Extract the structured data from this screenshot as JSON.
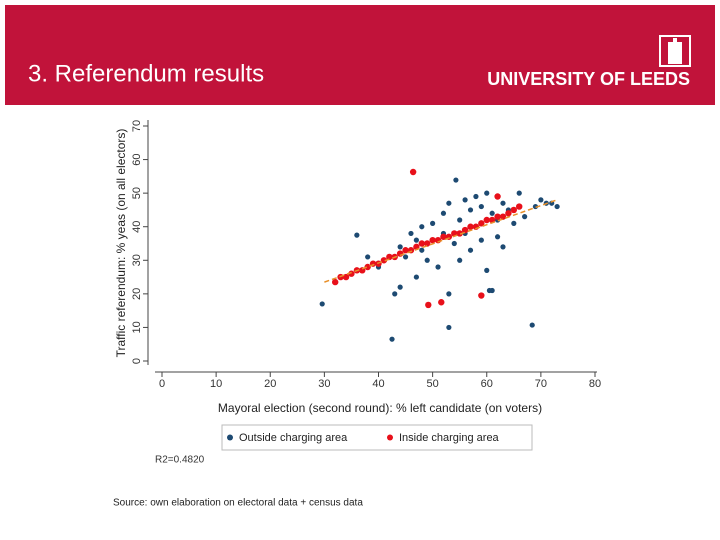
{
  "header": {
    "title": "3. Referendum results",
    "logo": "UNIVERSITY OF LEEDS"
  },
  "chart_data": {
    "type": "scatter",
    "x_label": "Mayoral election (second round): % left candidate (on voters)",
    "y_label": "Traffic referendum: % yeas (on all electors)",
    "annotation": "R2=0.4820",
    "xlim": [
      0,
      80
    ],
    "xticks": [
      0,
      10,
      20,
      30,
      40,
      50,
      60,
      70,
      80
    ],
    "ylim": [
      0,
      70
    ],
    "yticks": [
      0,
      10,
      20,
      30,
      40,
      50,
      60,
      70
    ],
    "series": [
      {
        "name": "Outside charging area",
        "color": "#1d4a72",
        "x": [
          29.6,
          36,
          38,
          40,
          42.5,
          43,
          44,
          45,
          46,
          47,
          48,
          48,
          49,
          50,
          50,
          51,
          52,
          52,
          53,
          53,
          54,
          54.3,
          55,
          55,
          56,
          56,
          57,
          57,
          58,
          58,
          59,
          59,
          60,
          60,
          61,
          61,
          62,
          62,
          63,
          63,
          64,
          65,
          66,
          67,
          68.4,
          69,
          70,
          71,
          72,
          73,
          53,
          60.5,
          47,
          44
        ],
        "values": [
          17,
          37.5,
          31,
          28,
          6.5,
          20,
          34,
          31,
          38,
          36,
          33,
          40,
          30,
          41,
          36,
          28,
          44,
          38,
          10,
          47,
          35,
          53.9,
          42,
          30,
          48,
          38,
          45,
          33,
          49,
          40,
          46,
          36,
          50,
          27,
          21,
          44,
          42,
          37,
          47,
          34,
          45,
          41,
          50,
          43,
          10.7,
          46,
          48,
          47,
          47,
          46,
          20,
          21,
          25,
          22
        ]
      },
      {
        "name": "Inside charging area",
        "color": "#e8101a",
        "x": [
          32,
          33,
          34,
          35,
          36,
          37,
          38,
          39,
          40,
          41,
          42,
          43,
          44,
          45,
          46,
          46.4,
          47,
          48,
          49,
          49.2,
          50,
          51,
          51.6,
          52,
          53,
          54,
          55,
          56,
          57,
          58,
          59,
          59,
          60,
          61,
          62,
          63,
          64,
          65,
          66,
          62
        ],
        "values": [
          23.5,
          25,
          25,
          26,
          27,
          27,
          28,
          29,
          29,
          30,
          31,
          31,
          32,
          33,
          33,
          56.3,
          34,
          35,
          35,
          16.7,
          36,
          36,
          17.5,
          37,
          37,
          38,
          38,
          39,
          40,
          40,
          41,
          19.5,
          42,
          42,
          43,
          43,
          44,
          45,
          46,
          49
        ]
      }
    ],
    "fit": {
      "color": "#e8902a",
      "x": [
        30,
        73
      ],
      "values": [
        23.5,
        48
      ]
    }
  },
  "footer": {
    "source": "Source: own elaboration on electoral data + census data"
  }
}
